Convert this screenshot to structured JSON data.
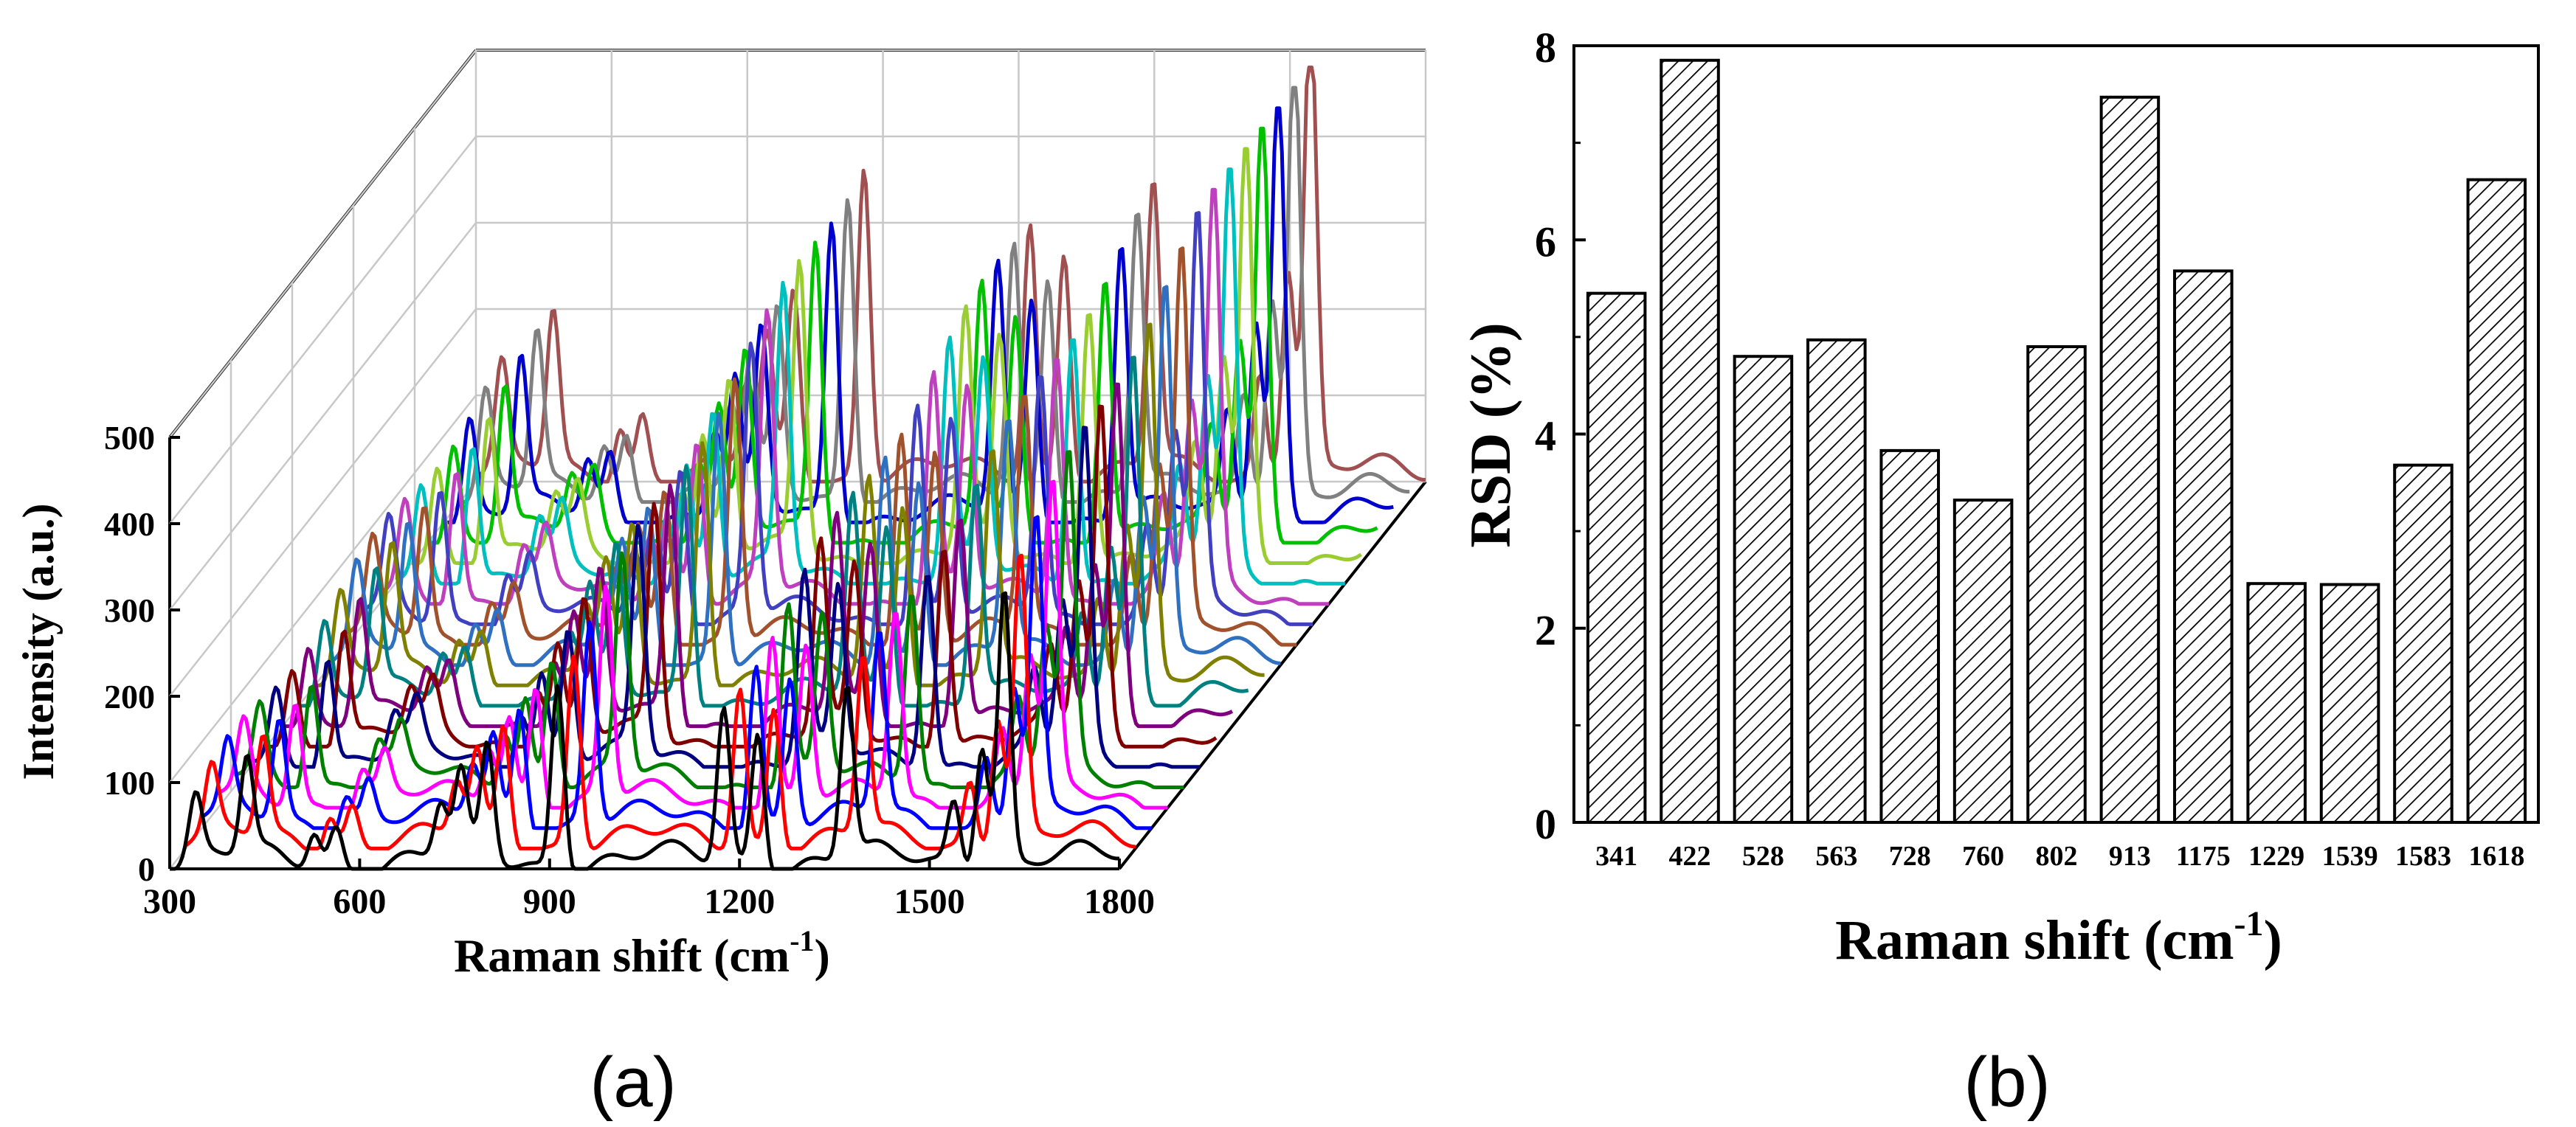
{
  "panels": {
    "a_label": "(a)",
    "b_label": "(b)"
  },
  "chart_data": [
    {
      "type": "line",
      "variant": "waterfall-3d",
      "panel": "a",
      "title": "",
      "xlabel": "Raman shift (cm",
      "xlabel_sup": "-1",
      "xlabel_close": ")",
      "ylabel": "Intensity (a.u.)",
      "xlim": [
        300,
        1800
      ],
      "ylim": [
        0,
        500
      ],
      "xticks": [
        "300",
        "600",
        "900",
        "1200",
        "1500",
        "1800"
      ],
      "yticks": [
        "0",
        "100",
        "200",
        "300",
        "400",
        "500"
      ],
      "series_count": 20,
      "series_colors": [
        "#000000",
        "#ff0000",
        "#0000ff",
        "#ff00ff",
        "#008000",
        "#000080",
        "#800000",
        "#7f007f",
        "#008080",
        "#808000",
        "#3070c0",
        "#a0522d",
        "#4040c0",
        "#bf40bf",
        "#00bfbf",
        "#9acd32",
        "#00c000",
        "#0000cd",
        "#808080",
        "#a05050"
      ],
      "peaks": [
        {
          "x": 341,
          "y": 70
        },
        {
          "x": 422,
          "y": 110
        },
        {
          "x": 528,
          "y": 40
        },
        {
          "x": 563,
          "y": 45
        },
        {
          "x": 728,
          "y": 60
        },
        {
          "x": 760,
          "y": 90
        },
        {
          "x": 802,
          "y": 130
        },
        {
          "x": 913,
          "y": 220
        },
        {
          "x": 1175,
          "y": 180
        },
        {
          "x": 1229,
          "y": 160
        },
        {
          "x": 1370,
          "y": 200
        },
        {
          "x": 1539,
          "y": 75
        },
        {
          "x": 1583,
          "y": 150
        },
        {
          "x": 1618,
          "y": 320
        }
      ],
      "baseline": 10,
      "peak_growth_per_series": 0.035,
      "series": []
    },
    {
      "type": "bar",
      "panel": "b",
      "title": "",
      "xlabel": "Raman shift (cm",
      "xlabel_sup": "-1",
      "xlabel_close": ")",
      "ylabel": "RSD (%)",
      "categories": [
        "341",
        "422",
        "528",
        "563",
        "728",
        "760",
        "802",
        "913",
        "1175",
        "1229",
        "1539",
        "1583",
        "1618"
      ],
      "values": [
        5.45,
        7.85,
        4.8,
        4.97,
        3.83,
        3.32,
        4.9,
        7.47,
        5.68,
        2.46,
        2.45,
        3.68,
        6.62
      ],
      "ylim": [
        0,
        8
      ],
      "yticks": [
        "0",
        "2",
        "4",
        "6",
        "8"
      ],
      "fill": "hatched",
      "bar_color": "#000000"
    }
  ]
}
